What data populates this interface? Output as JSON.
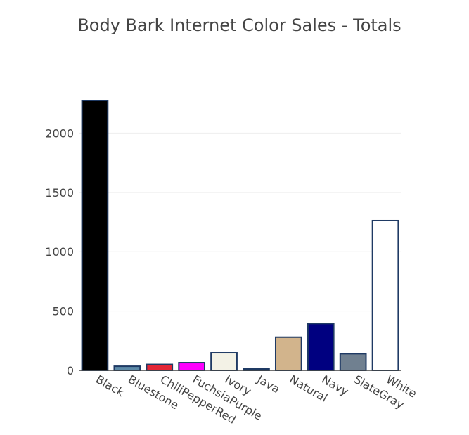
{
  "chart_data": {
    "type": "bar",
    "title": "Body Bark Internet Color Sales - Totals",
    "xlabel": "",
    "ylabel": "",
    "categories": [
      "Black",
      "Bluestone",
      "ChiliPepperRed",
      "FuchsiaPurple",
      "Ivory",
      "Java",
      "Natural",
      "Navy",
      "SlateGray",
      "White"
    ],
    "values": [
      2275,
      35,
      50,
      65,
      148,
      12,
      280,
      395,
      140,
      1262
    ],
    "colors": [
      "#000000",
      "#5d8aa8",
      "#e32636",
      "#ff00ff",
      "#f3f2e6",
      "#1c2d4f",
      "#d2b48c",
      "#000080",
      "#708090",
      "#ffffff"
    ],
    "bar_outline_color": "#1f3a64",
    "ylim": [
      0,
      2275
    ],
    "yticks": [
      0,
      500,
      1000,
      1500,
      2000
    ],
    "ytick_labels": [
      "0",
      "500",
      "1000",
      "1500",
      "2000"
    ],
    "grid": true,
    "legend": "none"
  }
}
